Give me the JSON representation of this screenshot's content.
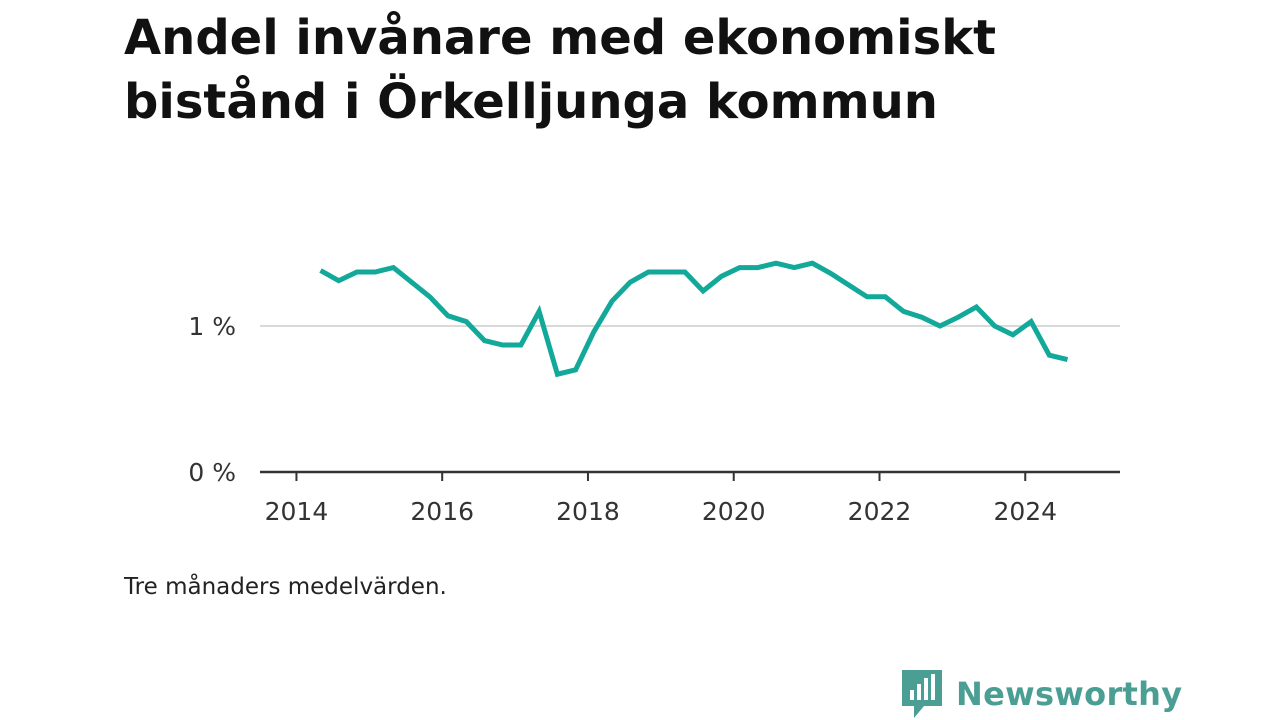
{
  "title": "Andel invånare med ekonomiskt bistånd i Örkelljunga kommun",
  "note": "Tre månaders medelvärden.",
  "brand": {
    "name": "Newsworthy",
    "icon": "newsworthy-logo-icon",
    "color": "#4a9e93"
  },
  "chart_data": {
    "type": "line",
    "title": "Andel invånare med ekonomiskt bistånd i Örkelljunga kommun",
    "xlabel": "",
    "ylabel": "",
    "color": "#12a89a",
    "grid": "horizontal at 1 %",
    "xlim": [
      2013.5,
      2025.3
    ],
    "ylim": [
      0,
      2
    ],
    "x_ticks": [
      {
        "value": 2014,
        "label": "2014"
      },
      {
        "value": 2016,
        "label": "2016"
      },
      {
        "value": 2018,
        "label": "2018"
      },
      {
        "value": 2020,
        "label": "2020"
      },
      {
        "value": 2022,
        "label": "2022"
      },
      {
        "value": 2024,
        "label": "2024"
      }
    ],
    "y_ticks": [
      {
        "value": 0,
        "label": "0 %"
      },
      {
        "value": 1,
        "label": "1 %"
      }
    ],
    "series": [
      {
        "x": [
          2014.33,
          2014.58,
          2014.83,
          2015.08,
          2015.33,
          2015.58,
          2015.83,
          2016.08,
          2016.33,
          2016.58,
          2016.83,
          2017.08,
          2017.33,
          2017.58,
          2017.83,
          2018.08,
          2018.33,
          2018.58,
          2018.83,
          2019.08,
          2019.33,
          2019.58,
          2019.83,
          2020.08,
          2020.33,
          2020.58,
          2020.83,
          2021.08,
          2021.33,
          2021.58,
          2021.83,
          2022.08,
          2022.33,
          2022.58,
          2022.83,
          2023.08,
          2023.33,
          2023.58,
          2023.83,
          2024.08,
          2024.33,
          2024.58
        ],
        "values": [
          1.38,
          1.31,
          1.37,
          1.37,
          1.4,
          1.3,
          1.2,
          1.07,
          1.03,
          0.9,
          0.87,
          0.87,
          1.1,
          0.67,
          0.7,
          0.96,
          1.17,
          1.3,
          1.37,
          1.37,
          1.37,
          1.24,
          1.34,
          1.4,
          1.4,
          1.43,
          1.4,
          1.43,
          1.36,
          1.28,
          1.2,
          1.2,
          1.1,
          1.06,
          1.0,
          1.06,
          1.13,
          1.0,
          0.94,
          1.03,
          0.8,
          0.77
        ]
      }
    ]
  }
}
